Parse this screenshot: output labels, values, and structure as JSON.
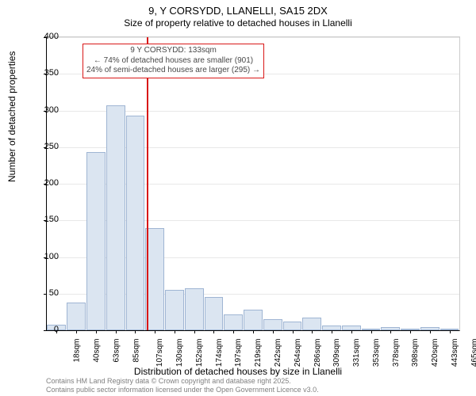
{
  "title": "9, Y CORSYDD, LLANELLI, SA15 2DX",
  "subtitle": "Size of property relative to detached houses in Llanelli",
  "ylabel": "Number of detached properties",
  "xlabel": "Distribution of detached houses by size in Llanelli",
  "footer_line1": "Contains HM Land Registry data © Crown copyright and database right 2025.",
  "footer_line2": "Contains public sector information licensed under the Open Government Licence v3.0.",
  "annotation": {
    "line1": "9 Y CORSYDD: 133sqm",
    "line2": "← 74% of detached houses are smaller (901)",
    "line3": "24% of semi-detached houses are larger (295) →"
  },
  "chart": {
    "type": "histogram",
    "ylim": [
      0,
      400
    ],
    "ytick_step": 50,
    "yticks": [
      0,
      50,
      100,
      150,
      200,
      250,
      300,
      350,
      400
    ],
    "xticks": [
      "18sqm",
      "40sqm",
      "63sqm",
      "85sqm",
      "107sqm",
      "130sqm",
      "152sqm",
      "174sqm",
      "197sqm",
      "219sqm",
      "242sqm",
      "264sqm",
      "286sqm",
      "309sqm",
      "331sqm",
      "353sqm",
      "378sqm",
      "398sqm",
      "420sqm",
      "443sqm",
      "465sqm"
    ],
    "bar_values": [
      8,
      38,
      243,
      307,
      293,
      140,
      55,
      57,
      45,
      22,
      28,
      15,
      12,
      17,
      6,
      6,
      0,
      4,
      0,
      4,
      0
    ],
    "bar_fill": "#dbe5f1",
    "bar_border": "#9fb5d3",
    "marker_color": "#d91818",
    "marker_x_index": 5.1,
    "background_color": "#ffffff",
    "grid_color": "#e8e8e8",
    "tick_fontsize": 11,
    "label_fontsize": 12,
    "title_fontsize": 13
  }
}
